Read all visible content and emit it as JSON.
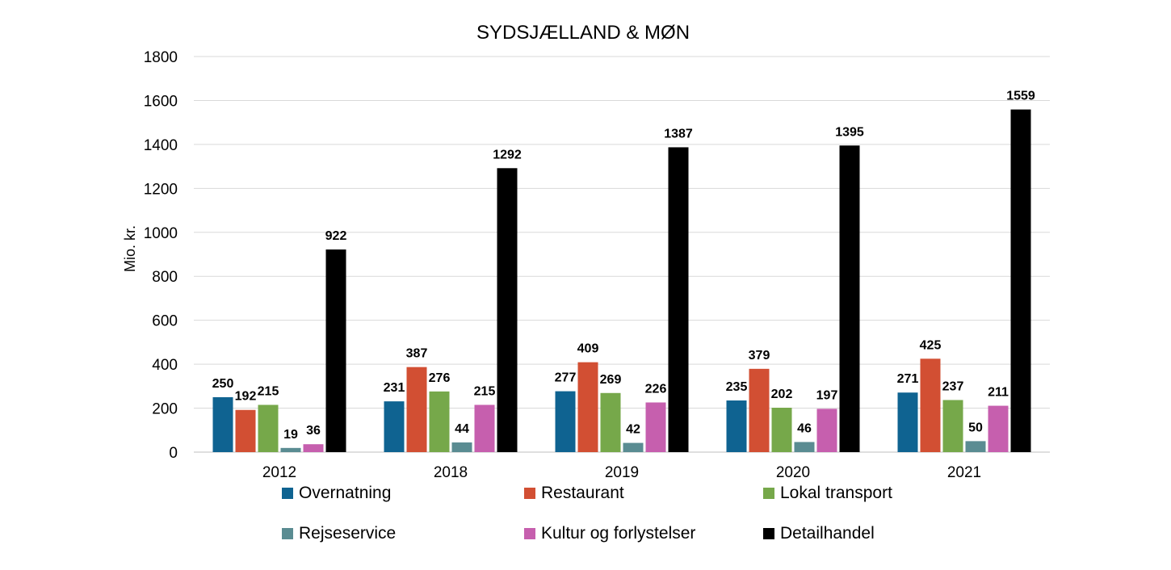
{
  "chart_data": {
    "type": "bar",
    "title": "SYDSJÆLLAND & MØN",
    "xlabel": "",
    "ylabel": "Mio. kr.",
    "ylim": [
      0,
      1800
    ],
    "yticks": [
      0,
      200,
      400,
      600,
      800,
      1000,
      1200,
      1400,
      1600,
      1800
    ],
    "grid": true,
    "legend_position": "bottom",
    "categories": [
      "2012",
      "2018",
      "2019",
      "2020",
      "2021"
    ],
    "series": [
      {
        "name": "Overnatning",
        "color": "#0f6391",
        "values": [
          250,
          231,
          277,
          235,
          271
        ]
      },
      {
        "name": "Restaurant",
        "color": "#d24f33",
        "values": [
          192,
          387,
          409,
          379,
          425
        ]
      },
      {
        "name": "Lokal transport",
        "color": "#76a84a",
        "values": [
          215,
          276,
          269,
          202,
          237
        ]
      },
      {
        "name": "Rejseservice",
        "color": "#5a8c92",
        "values": [
          19,
          44,
          42,
          46,
          50
        ]
      },
      {
        "name": "Kultur og forlystelser",
        "color": "#c65fae",
        "values": [
          36,
          215,
          226,
          197,
          211
        ]
      },
      {
        "name": "Detailhandel",
        "color": "#000000",
        "values": [
          922,
          1292,
          1387,
          1395,
          1559
        ]
      }
    ]
  }
}
